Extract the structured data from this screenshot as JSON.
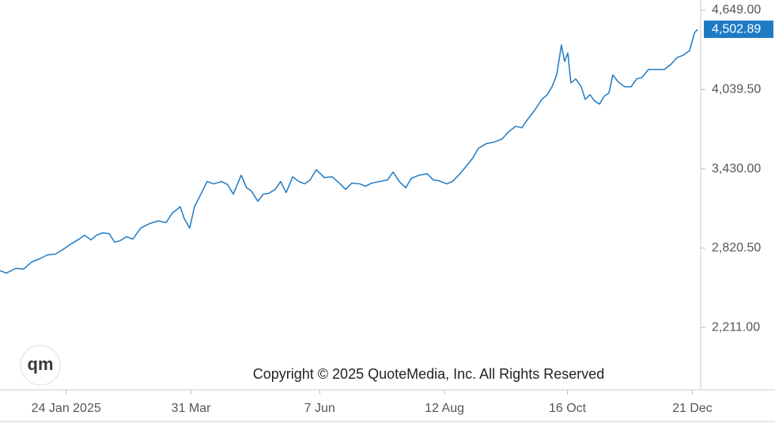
{
  "chart_data": {
    "type": "line",
    "copyright": "Copyright © 2025 QuoteMedia, Inc. All Rights Reserved",
    "logo": "qm",
    "price_tag": "4,502.89",
    "x": [
      -11,
      -7.7,
      -2.6,
      1.5,
      5.7,
      9.9,
      14.1,
      18.3,
      22.4,
      26.6,
      30.8,
      33.7,
      37.1,
      40.0,
      43.4,
      46.7,
      49.6,
      52.5,
      55.9,
      59.2,
      63.4,
      68.4,
      72.6,
      76.8,
      80.1,
      84.3,
      86.4,
      89.3,
      91.8,
      95.6,
      98.5,
      101.9,
      106.1,
      109.4,
      112.3,
      116.5,
      119.4,
      121.9,
      125.3,
      128.2,
      131.1,
      134.5,
      137.4,
      140.3,
      143.7,
      147.0,
      150.0,
      152.9,
      156.2,
      160.4,
      164.6,
      168.8,
      171.7,
      175.0,
      179.2,
      182.2,
      185.5,
      189.7,
      193.9,
      196.8,
      200.1,
      203.5,
      206.4,
      210.6,
      214.8,
      218.1,
      221.0,
      225.2,
      228.1,
      231.5,
      235.7,
      239.0,
      241.9,
      246.1,
      250.3,
      254.5,
      257.4,
      261.6,
      264.9,
      268.3,
      271.6,
      275.4,
      278.3,
      280.8,
      283.3,
      285.8,
      287.5,
      289.2,
      290.8,
      293.4,
      296.3,
      298.4,
      300.9,
      303.4,
      305.9,
      308.4,
      310.9,
      313.0,
      315.9,
      319.3,
      322.6,
      325.6,
      328.5,
      331.8,
      336.0,
      340.2,
      343.5,
      346.9,
      350.2,
      353.6,
      356.1,
      357.7
    ],
    "series": [
      {
        "color": "#1f7ac4",
        "values": [
          2647.5,
          2629,
          2665.7,
          2659.6,
          2714.2,
          2738.5,
          2768.8,
          2774.9,
          2811.3,
          2853.7,
          2890.1,
          2920.5,
          2884.0,
          2920.5,
          2938.6,
          2932.6,
          2865.9,
          2878.0,
          2908.3,
          2890.1,
          2975.0,
          3011.4,
          3029.6,
          3017.5,
          3090.3,
          3138.8,
          3047.8,
          2975.0,
          3138.8,
          3248.0,
          3332.9,
          3314.7,
          3332.9,
          3308.6,
          3235.8,
          3381.4,
          3284.3,
          3260.1,
          3181.2,
          3235.8,
          3241.9,
          3272.2,
          3332.9,
          3248.0,
          3369.2,
          3332.9,
          3314.7,
          3345.0,
          3423.9,
          3363.2,
          3369.2,
          3314.7,
          3272.2,
          3320.7,
          3314.7,
          3296.5,
          3320.7,
          3332.9,
          3345.0,
          3405.6,
          3332.9,
          3284.3,
          3357.1,
          3381.4,
          3393.5,
          3345.0,
          3338.9,
          3314.7,
          3332.9,
          3381.4,
          3454.2,
          3514.8,
          3587.6,
          3624.0,
          3636.1,
          3660.4,
          3708.9,
          3757.4,
          3745.3,
          3818.0,
          3878.7,
          3963.6,
          4000.0,
          4060.7,
          4151.7,
          4382.1,
          4254.7,
          4321.4,
          4091.0,
          4121.3,
          4060.7,
          3963.6,
          4000.0,
          3951.5,
          3927.2,
          3987.9,
          4012.1,
          4151.7,
          4097.0,
          4060.7,
          4060.7,
          4121.3,
          4133.4,
          4194.1,
          4194.1,
          4194.1,
          4230.5,
          4285.2,
          4303.3,
          4339.8,
          4473.1,
          4502.89
        ]
      }
    ],
    "xlim": [
      -11,
      359
    ],
    "xticks": [
      {
        "value": 24,
        "label": "24 Jan 2025"
      },
      {
        "value": 90,
        "label": "31 Mar"
      },
      {
        "value": 158,
        "label": "7 Jun"
      },
      {
        "value": 224,
        "label": "12 Aug"
      },
      {
        "value": 289,
        "label": "16 Oct"
      },
      {
        "value": 355,
        "label": "21 Dec"
      }
    ],
    "ylim": [
      1732,
      4728
    ],
    "yticks": [
      {
        "value": 2211,
        "label": "2,211.00"
      },
      {
        "value": 2820.5,
        "label": "2,820.50"
      },
      {
        "value": 3430,
        "label": "3,430.00"
      },
      {
        "value": 4039.5,
        "label": "4,039.50"
      },
      {
        "value": 4649,
        "label": "4,649.00"
      }
    ]
  }
}
